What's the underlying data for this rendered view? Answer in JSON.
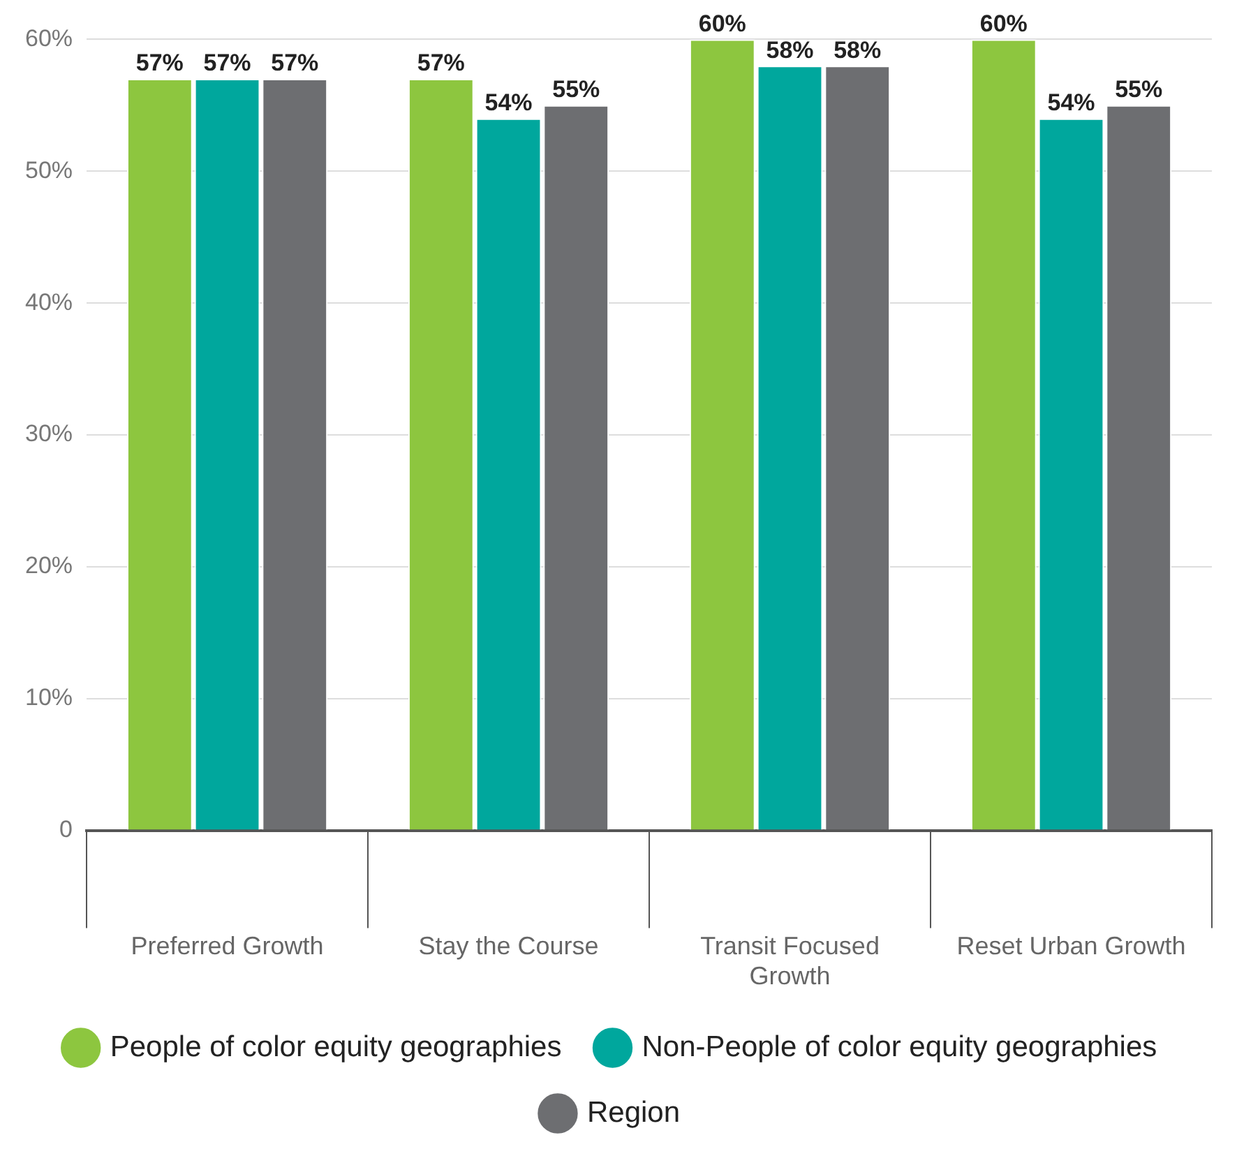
{
  "chart_data": {
    "type": "bar",
    "categories": [
      "Preferred Growth",
      "Stay the Course",
      "Transit Focused Growth",
      "Reset Urban Growth"
    ],
    "series": [
      {
        "name": "People of color equity geographies",
        "color": "#8dc63f",
        "values": [
          57,
          57,
          60,
          60
        ],
        "value_labels": [
          "57%",
          "57%",
          "60%",
          "60%"
        ]
      },
      {
        "name": "Non-People of color equity geographies",
        "color": "#00a79d",
        "values": [
          57,
          54,
          58,
          54
        ],
        "value_labels": [
          "57%",
          "54%",
          "58%",
          "54%"
        ]
      },
      {
        "name": "Region",
        "color": "#6d6e71",
        "values": [
          57,
          55,
          58,
          55
        ],
        "value_labels": [
          "57%",
          "55%",
          "58%",
          "55%"
        ]
      }
    ],
    "ylim": [
      0,
      60
    ],
    "yticks": [
      0,
      {
        "value": 10,
        "label": "10%"
      },
      {
        "value": 20,
        "label": "20%"
      },
      {
        "value": 30,
        "label": "30%"
      },
      {
        "value": 40,
        "label": "40%"
      },
      {
        "value": 50,
        "label": "50%"
      },
      {
        "value": 60,
        "label": "60%"
      }
    ],
    "grid": "y",
    "legend": "bottom"
  }
}
